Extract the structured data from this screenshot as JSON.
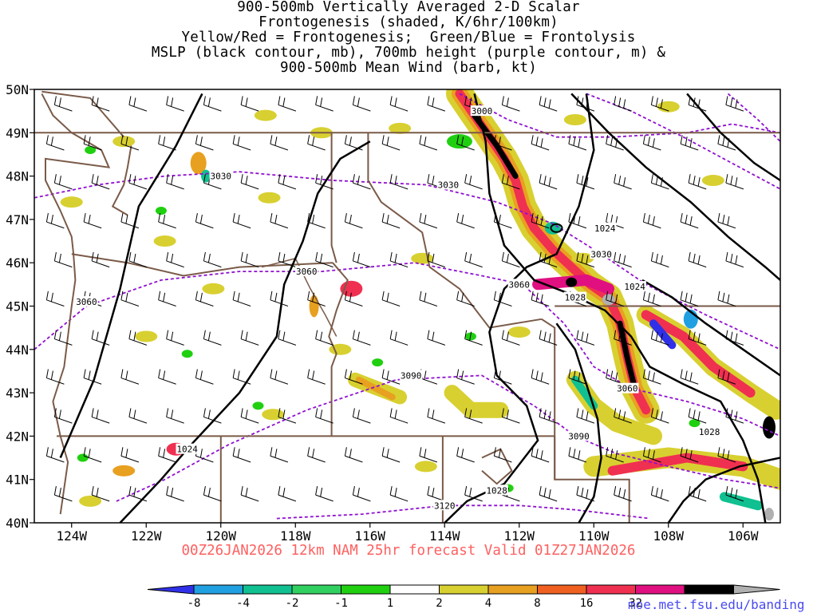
{
  "title_lines": [
    "900-500mb Vertically Averaged 2-D Scalar",
    "Frontogenesis (shaded, K/6hr/100km)",
    "Yellow/Red = Frontogenesis;  Green/Blue = Frontolysis",
    "MSLP (black contour, mb), 700mb height (purple contour, m) &",
    "900-500mb Mean Wind (barb, kt)"
  ],
  "valid_text": "00Z26JAN2026 12km NAM 25hr forecast Valid 01Z27JAN2026",
  "credit": "moe.met.fsu.edu/banding",
  "chart_data": {
    "type": "heatmap",
    "xlim": [
      -125,
      -105
    ],
    "ylim": [
      40,
      50
    ],
    "x_ticks": [
      {
        "value": -124,
        "label": "124W"
      },
      {
        "value": -122,
        "label": "122W"
      },
      {
        "value": -120,
        "label": "120W"
      },
      {
        "value": -118,
        "label": "118W"
      },
      {
        "value": -116,
        "label": "116W"
      },
      {
        "value": -114,
        "label": "114W"
      },
      {
        "value": -112,
        "label": "112W"
      },
      {
        "value": -110,
        "label": "110W"
      },
      {
        "value": -108,
        "label": "108W"
      },
      {
        "value": -106,
        "label": "106W"
      }
    ],
    "y_ticks": [
      {
        "value": 40,
        "label": "40N"
      },
      {
        "value": 41,
        "label": "41N"
      },
      {
        "value": 42,
        "label": "42N"
      },
      {
        "value": 43,
        "label": "43N"
      },
      {
        "value": 44,
        "label": "44N"
      },
      {
        "value": 45,
        "label": "45N"
      },
      {
        "value": 46,
        "label": "46N"
      },
      {
        "value": 47,
        "label": "47N"
      },
      {
        "value": 48,
        "label": "48N"
      },
      {
        "value": 49,
        "label": "49N"
      },
      {
        "value": 50,
        "label": "50N"
      }
    ],
    "colorbar": {
      "colors": [
        "#3030e8",
        "#20a0e0",
        "#10c090",
        "#30d060",
        "#20d010",
        "#ffffff",
        "#d8d030",
        "#e8a020",
        "#f06020",
        "#f03050",
        "#e01080",
        "#000000",
        "#b0b0b0"
      ],
      "labels": [
        "-8",
        "-4",
        "-2",
        "-1",
        "1",
        "2",
        "4",
        "8",
        "16",
        "32"
      ]
    },
    "mslp_labels": [
      {
        "lon": -120.9,
        "lat": 41.7,
        "text": "1024"
      },
      {
        "lon": -112.6,
        "lat": 40.75,
        "text": "1028"
      },
      {
        "lon": -110.5,
        "lat": 45.2,
        "text": "1028"
      },
      {
        "lon": -108.9,
        "lat": 45.45,
        "text": "1024"
      },
      {
        "lon": -109.7,
        "lat": 46.8,
        "text": "1024"
      },
      {
        "lon": -106.9,
        "lat": 42.1,
        "text": "1028"
      }
    ],
    "height_labels": [
      {
        "lon": -113.0,
        "lat": 49.5,
        "text": "3000"
      },
      {
        "lon": -120.0,
        "lat": 48.0,
        "text": "3030"
      },
      {
        "lon": -113.9,
        "lat": 47.8,
        "text": "3030"
      },
      {
        "lon": -109.8,
        "lat": 46.2,
        "text": "3030"
      },
      {
        "lon": -117.7,
        "lat": 45.8,
        "text": "3060"
      },
      {
        "lon": -112.0,
        "lat": 45.5,
        "text": "3060"
      },
      {
        "lon": -123.6,
        "lat": 45.1,
        "text": "3060"
      },
      {
        "lon": -109.1,
        "lat": 43.1,
        "text": "3060"
      },
      {
        "lon": -114.9,
        "lat": 43.4,
        "text": "3090"
      },
      {
        "lon": -110.4,
        "lat": 42.0,
        "text": "3090"
      },
      {
        "lon": -114.0,
        "lat": 40.4,
        "text": "3120"
      }
    ],
    "grid": false,
    "legend": "bottom"
  },
  "colors": {
    "map_lines": "#7a5a48",
    "mslp": "#000000",
    "height": "#9010d0",
    "valid_text": "#ff6060",
    "credit": "#4a4af0"
  }
}
